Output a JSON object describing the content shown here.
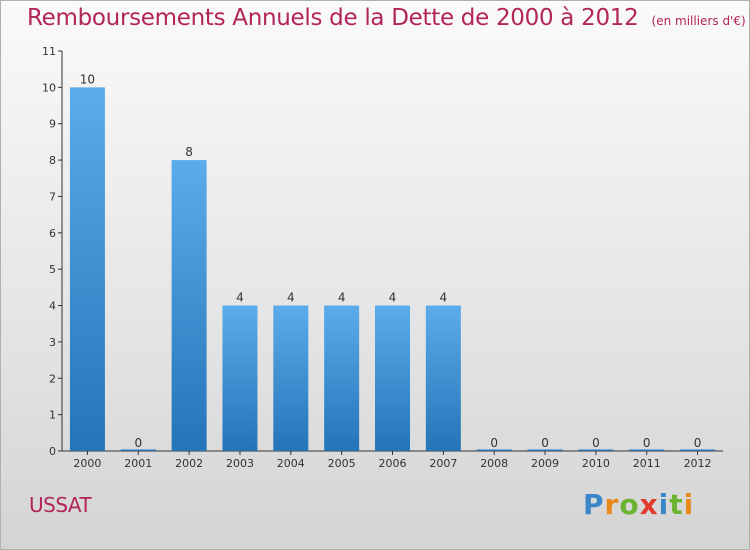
{
  "header": {
    "title": "Remboursements Annuels de la Dette de 2000 à 2012",
    "subtitle": "(en milliers d'€)"
  },
  "footer": {
    "commune": "USSAT",
    "logo_text": "Proxiti"
  },
  "colors": {
    "title": "#b3245a",
    "bar_top": "#5aacea",
    "bar_bottom": "#2474b8",
    "axis": "#333333",
    "logo_letters": [
      "#3b86c9",
      "#e88a1a",
      "#6ab32e",
      "#e23b2e",
      "#3b86c9",
      "#6ab32e",
      "#e88a1a"
    ]
  },
  "chart_data": {
    "type": "bar",
    "categories": [
      "2000",
      "2001",
      "2002",
      "2003",
      "2004",
      "2005",
      "2006",
      "2007",
      "2008",
      "2009",
      "2010",
      "2011",
      "2012"
    ],
    "values": [
      10,
      0,
      8,
      4,
      4,
      4,
      4,
      4,
      0,
      0,
      0,
      0,
      0
    ],
    "data_labels": [
      "10",
      "0",
      "8",
      "4",
      "4",
      "4",
      "4",
      "4",
      "0",
      "0",
      "0",
      "0",
      "0"
    ],
    "yticks": [
      "0",
      "1",
      "2",
      "3",
      "4",
      "5",
      "6",
      "7",
      "8",
      "9",
      "10",
      "11"
    ],
    "ylim": [
      0,
      11
    ],
    "grid": false,
    "legend": "none"
  }
}
